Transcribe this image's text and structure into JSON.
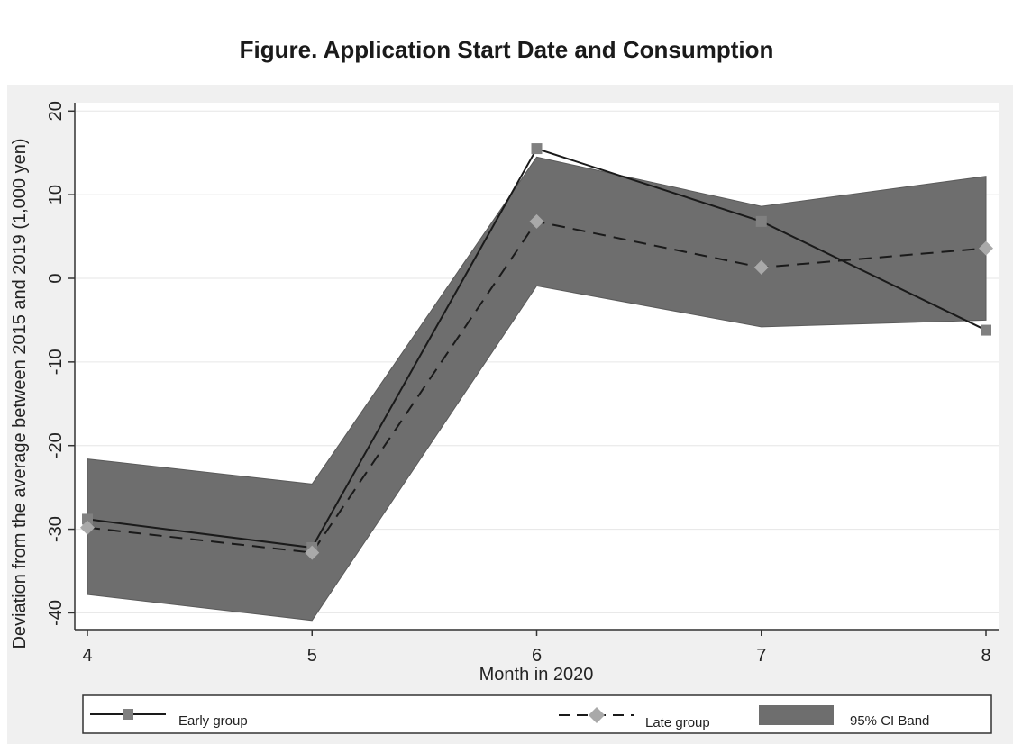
{
  "figure": {
    "title": "Figure. Application Start Date and Consumption"
  },
  "chart_data": {
    "type": "line",
    "x": [
      4,
      5,
      6,
      7,
      8
    ],
    "xlabel": "Month in 2020",
    "ylabel": "Deviation from the average between 2015 and 2019 (1,000 yen)",
    "xlim": [
      4,
      8
    ],
    "ylim": [
      -42,
      21
    ],
    "xticks": [
      "4",
      "5",
      "6",
      "7",
      "8"
    ],
    "yticks": [
      20,
      10,
      0,
      -10,
      -20,
      -30,
      -40
    ],
    "ytick_labels": [
      "20",
      "10",
      "0",
      "-10",
      "-20",
      "-30",
      "-40"
    ],
    "grid": true,
    "legend_position": "bottom",
    "series": [
      {
        "name": "Early group",
        "style": "solid",
        "marker": "square",
        "color": "#1a1a1a",
        "marker_color": "#808080",
        "values": [
          -28.8,
          -32.2,
          15.5,
          6.8,
          -6.2
        ]
      },
      {
        "name": "Late group",
        "style": "dashed",
        "marker": "diamond",
        "color": "#1a1a1a",
        "marker_color": "#a9a9a9",
        "values": [
          -29.8,
          -32.8,
          6.8,
          1.3,
          3.6
        ]
      }
    ],
    "band": {
      "name": "95% CI Band",
      "color": "#6e6e6e",
      "upper": [
        -21.6,
        -24.6,
        14.5,
        8.6,
        12.2
      ],
      "lower": [
        -37.8,
        -40.9,
        -0.9,
        -5.8,
        -5.0
      ]
    }
  }
}
